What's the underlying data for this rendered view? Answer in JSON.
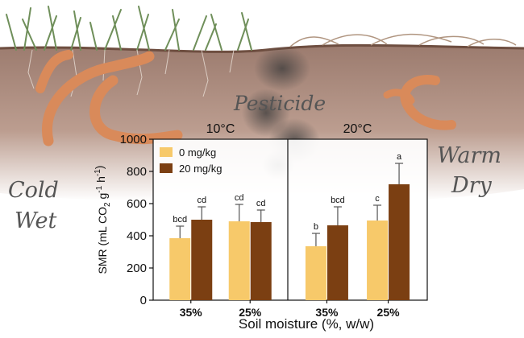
{
  "illustration": {
    "pesticide_label": "Pesticide",
    "left_label_line1": "Cold",
    "left_label_line2": "Wet",
    "right_label_line1": "Warm",
    "right_label_line2": "Dry",
    "icons": [
      "grass-icon",
      "earthworm-icon",
      "pesticide-stain-icon"
    ],
    "colors": {
      "soil": "#9a7060",
      "worm": "#d98a5a",
      "grass": "#6f8f5a"
    }
  },
  "chart_data": {
    "type": "bar",
    "ylabel_parts": [
      "SMR (mL CO",
      "2",
      " g",
      "-1",
      " h",
      "-1",
      ")"
    ],
    "xlabel": "Soil moisture (%, w/w)",
    "ylim": [
      0,
      1000
    ],
    "yticks": [
      "0",
      "200",
      "400",
      "600",
      "800",
      "1000"
    ],
    "ytick_values": [
      0,
      200,
      400,
      600,
      800,
      1000
    ],
    "grid": false,
    "legend_position": "top-left",
    "panels": [
      {
        "title": "10°C",
        "categories": [
          "35%",
          "25%"
        ],
        "series": [
          {
            "name": "0 mg/kg",
            "color": "#f7c96a",
            "values": [
              385,
              490
            ],
            "errors": [
              75,
              105
            ],
            "letters": [
              "bcd",
              "cd"
            ]
          },
          {
            "name": "20 mg/kg",
            "color": "#7b3f12",
            "values": [
              500,
              485
            ],
            "errors": [
              80,
              75
            ],
            "letters": [
              "cd",
              "cd"
            ]
          }
        ]
      },
      {
        "title": "20°C",
        "categories": [
          "35%",
          "25%"
        ],
        "series": [
          {
            "name": "0 mg/kg",
            "color": "#f7c96a",
            "values": [
              335,
              495
            ],
            "errors": [
              80,
              95
            ],
            "letters": [
              "b",
              "c"
            ]
          },
          {
            "name": "20 mg/kg",
            "color": "#7b3f12",
            "values": [
              465,
              720
            ],
            "errors": [
              115,
              130
            ],
            "letters": [
              "bcd",
              "a"
            ]
          }
        ]
      }
    ],
    "legend": [
      {
        "name": "0 mg/kg",
        "color": "#f7c96a"
      },
      {
        "name": "20 mg/kg",
        "color": "#7b3f12"
      }
    ]
  }
}
